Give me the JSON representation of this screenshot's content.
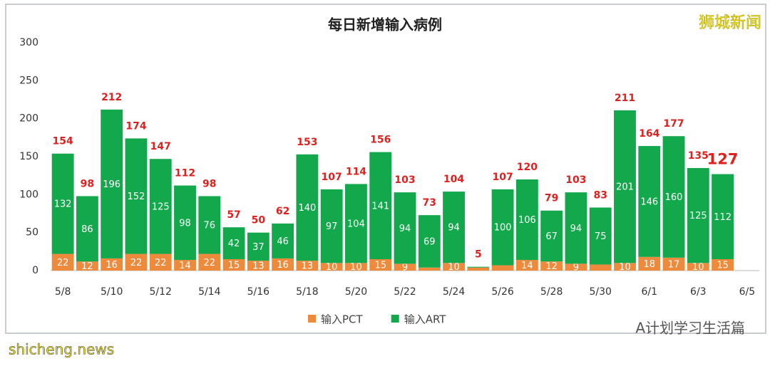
{
  "chart_data": {
    "type": "stacked-bar",
    "title": "每日新增输入病例",
    "categories": [
      "5/8",
      null,
      "5/10",
      null,
      "5/12",
      null,
      "5/14",
      null,
      "5/16",
      null,
      "5/18",
      null,
      "5/20",
      null,
      "5/22",
      null,
      "5/24",
      null,
      "5/26",
      null,
      "5/28",
      null,
      "5/30",
      null,
      "6/1",
      null,
      "6/3",
      null,
      "6/5"
    ],
    "series": [
      {
        "name": "输入PCT",
        "color": "#ed8a3c",
        "values": [
          22,
          12,
          16,
          22,
          22,
          14,
          22,
          15,
          13,
          16,
          13,
          10,
          10,
          15,
          9,
          4,
          10,
          4,
          7,
          14,
          12,
          9,
          8,
          10,
          18,
          17,
          10,
          15,
          null
        ]
      },
      {
        "name": "输入ART",
        "color": "#13a84b",
        "values": [
          132,
          86,
          196,
          152,
          125,
          98,
          76,
          42,
          37,
          46,
          140,
          97,
          104,
          141,
          94,
          69,
          94,
          1,
          100,
          106,
          67,
          94,
          75,
          201,
          146,
          160,
          125,
          112,
          null
        ]
      }
    ],
    "totals": [
      154,
      98,
      212,
      174,
      147,
      112,
      98,
      57,
      50,
      62,
      153,
      107,
      114,
      156,
      103,
      73,
      104,
      5,
      107,
      120,
      79,
      103,
      83,
      211,
      164,
      177,
      135,
      127,
      null
    ],
    "ylim": [
      0,
      300
    ],
    "yticks": [
      0,
      50,
      100,
      150,
      200,
      250,
      300
    ],
    "grid": false,
    "watermark": "狮城新闻",
    "credit": "A计划学习生活篇",
    "source": "shicheng.news"
  }
}
